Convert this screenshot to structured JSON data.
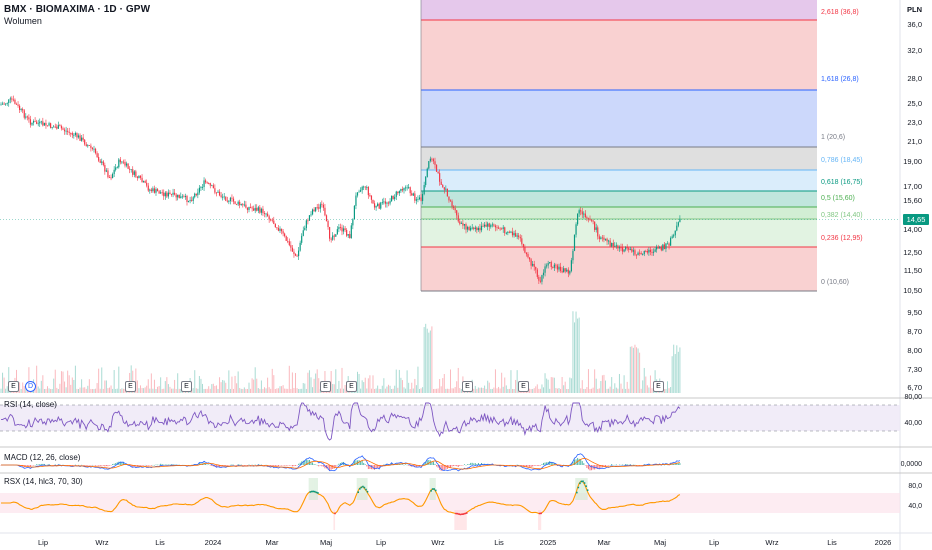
{
  "header": {
    "title": "BMX · BIOMAXIMA · 1D · GPW",
    "volume_label": "Wolumen"
  },
  "price_axis": {
    "currency": "PLN",
    "ticks": [
      "36,0",
      "32,0",
      "28,0",
      "25,0",
      "23,0",
      "21,0",
      "19,00",
      "17,00",
      "15,60",
      "14,00",
      "12,50",
      "11,50",
      "10,50",
      "9,50",
      "8,70",
      "8,00",
      "7,30",
      "6,70"
    ],
    "last_price": "14,65"
  },
  "time_axis": {
    "ticks": [
      "Lip",
      "Wrz",
      "Lis",
      "2024",
      "Mar",
      "Maj",
      "Lip",
      "Wrz",
      "Lis",
      "2025",
      "Mar",
      "Maj",
      "Lip",
      "Wrz",
      "Lis",
      "2026"
    ]
  },
  "fibonacci": {
    "levels": [
      {
        "label": "2,618 (36,8)",
        "color": "#f23645"
      },
      {
        "label": "1,618 (26,8)",
        "color": "#2962ff"
      },
      {
        "label": "1 (20,6)",
        "color": "#787b86"
      },
      {
        "label": "0,786 (18,45)",
        "color": "#64b5f6"
      },
      {
        "label": "0,618 (16,75)",
        "color": "#089981"
      },
      {
        "label": "0,5 (15,60)",
        "color": "#4caf50"
      },
      {
        "label": "0,382 (14,40)",
        "color": "#81c784"
      },
      {
        "label": "0,236 (12,95)",
        "color": "#f23645"
      },
      {
        "label": "0 (10,60)",
        "color": "#787b86"
      }
    ]
  },
  "events": [
    {
      "label": "E",
      "type": "earnings"
    },
    {
      "label": "D",
      "type": "dividend"
    },
    {
      "label": "E",
      "type": "earnings"
    },
    {
      "label": "E",
      "type": "earnings"
    },
    {
      "label": "E",
      "type": "earnings"
    },
    {
      "label": "E",
      "type": "earnings"
    },
    {
      "label": "E",
      "type": "earnings"
    },
    {
      "label": "E",
      "type": "earnings"
    },
    {
      "label": "E",
      "type": "earnings"
    }
  ],
  "indicators": {
    "rsi": {
      "label": "RSI (14, close)",
      "ticks": [
        "80,00",
        "40,00"
      ]
    },
    "macd": {
      "label": "MACD (12, 26, close)",
      "ticks": [
        "0,0000"
      ]
    },
    "rsx": {
      "label": "RSX (14, hlc3, 70, 30)",
      "ticks": [
        "80,0",
        "40,0"
      ]
    }
  },
  "colors": {
    "up": "#089981",
    "down": "#f23645",
    "rsi_line": "#7e57c2",
    "macd_line": "#2962ff",
    "signal_line": "#ff6d00",
    "rsx_line": "#ff9800"
  }
}
